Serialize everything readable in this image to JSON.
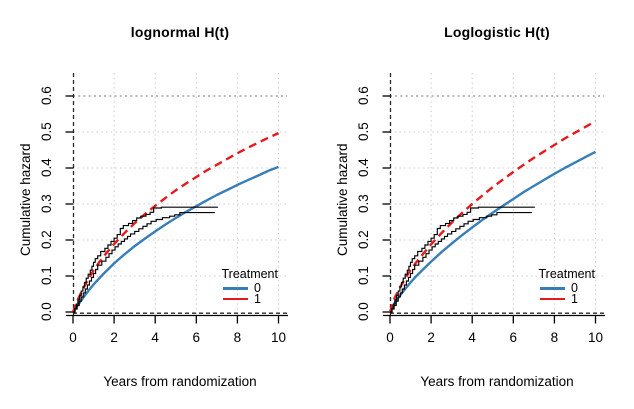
{
  "figure": {
    "colors": {
      "treatment0": "#377eb8",
      "treatment1": "#e41a1c",
      "nonparametric": "#000000",
      "grid": "#cccccc",
      "grid_dark": "#909090",
      "axis_dashed": "#2a2a2a"
    },
    "legend": {
      "title": "Treatment",
      "entries": [
        {
          "label": "0",
          "color": "#377eb8"
        },
        {
          "label": "1",
          "color": "#e41a1c"
        }
      ]
    }
  },
  "chart_data": [
    {
      "type": "line",
      "title": "lognormal H(t)",
      "xlabel": "Years from randomization",
      "ylabel": "Cumulative hazard",
      "xlim": [
        0,
        10
      ],
      "ylim": [
        0,
        0.6
      ],
      "grid": true,
      "x_ticks": [
        0,
        2,
        4,
        6,
        8,
        10
      ],
      "x_tick_labels": [
        "0",
        "2",
        "4",
        "6",
        "8",
        "10"
      ],
      "y_ticks": [
        0,
        0.1,
        0.2,
        0.3,
        0.4,
        0.5,
        0.6
      ],
      "y_tick_labels": [
        "0.0",
        "0.1",
        "0.2",
        "0.3",
        "0.4",
        "0.5",
        "0.6"
      ],
      "reference_lines": {
        "horizontal_dotted": 0.6,
        "vertical_dashed": 0,
        "horizontal_dashed": 0
      },
      "legend_position": "bottom-right",
      "x": [
        0,
        0.25,
        0.5,
        0.75,
        1,
        1.25,
        1.5,
        2,
        2.5,
        3,
        3.5,
        4,
        4.5,
        5,
        5.5,
        6,
        6.5,
        7,
        7.5,
        8,
        8.5,
        9,
        9.5,
        10
      ],
      "series": [
        {
          "name": "Treatment 0 lognormal fit",
          "style": "solid",
          "color": "#377eb8",
          "values": [
            0,
            0.02,
            0.04,
            0.059,
            0.076,
            0.092,
            0.107,
            0.135,
            0.16,
            0.183,
            0.204,
            0.224,
            0.243,
            0.261,
            0.278,
            0.294,
            0.31,
            0.325,
            0.339,
            0.353,
            0.366,
            0.379,
            0.392,
            0.403
          ]
        },
        {
          "name": "Treatment 1 lognormal fit",
          "style": "dashed",
          "color": "#e41a1c",
          "values": [
            0,
            0.036,
            0.066,
            0.092,
            0.115,
            0.136,
            0.155,
            0.189,
            0.219,
            0.247,
            0.272,
            0.295,
            0.317,
            0.338,
            0.357,
            0.375,
            0.393,
            0.409,
            0.425,
            0.441,
            0.456,
            0.47,
            0.484,
            0.497
          ]
        },
        {
          "name": "Treatment 1 nonparametric cumulative hazard",
          "style": "step",
          "color": "#000000",
          "points": [
            [
              0,
              0
            ],
            [
              0.08,
              0.01
            ],
            [
              0.16,
              0.022
            ],
            [
              0.24,
              0.034
            ],
            [
              0.32,
              0.046
            ],
            [
              0.4,
              0.058
            ],
            [
              0.48,
              0.07
            ],
            [
              0.56,
              0.082
            ],
            [
              0.64,
              0.094
            ],
            [
              0.74,
              0.105
            ],
            [
              0.84,
              0.116
            ],
            [
              0.92,
              0.127
            ],
            [
              1.0,
              0.138
            ],
            [
              1.08,
              0.148
            ],
            [
              1.2,
              0.156
            ],
            [
              1.35,
              0.168
            ],
            [
              1.55,
              0.177
            ],
            [
              1.7,
              0.186
            ],
            [
              1.85,
              0.196
            ],
            [
              2.0,
              0.205
            ],
            [
              2.15,
              0.215
            ],
            [
              2.3,
              0.232
            ],
            [
              2.45,
              0.24
            ],
            [
              2.7,
              0.246
            ],
            [
              2.9,
              0.254
            ],
            [
              3.1,
              0.261
            ],
            [
              3.3,
              0.266
            ],
            [
              3.55,
              0.271
            ],
            [
              3.75,
              0.277
            ],
            [
              3.92,
              0.289
            ],
            [
              4.3,
              0.291
            ],
            [
              7.05,
              0.291
            ]
          ]
        },
        {
          "name": "Treatment 0 nonparametric cumulative hazard",
          "style": "step",
          "color": "#000000",
          "points": [
            [
              0,
              0
            ],
            [
              0.1,
              0.008
            ],
            [
              0.2,
              0.018
            ],
            [
              0.3,
              0.03
            ],
            [
              0.4,
              0.042
            ],
            [
              0.5,
              0.053
            ],
            [
              0.6,
              0.064
            ],
            [
              0.7,
              0.075
            ],
            [
              0.8,
              0.086
            ],
            [
              0.9,
              0.096
            ],
            [
              1.0,
              0.107
            ],
            [
              1.1,
              0.118
            ],
            [
              1.2,
              0.13
            ],
            [
              1.4,
              0.141
            ],
            [
              1.6,
              0.152
            ],
            [
              1.75,
              0.162
            ],
            [
              1.9,
              0.172
            ],
            [
              2.05,
              0.181
            ],
            [
              2.2,
              0.189
            ],
            [
              2.35,
              0.196
            ],
            [
              2.5,
              0.203
            ],
            [
              2.65,
              0.21
            ],
            [
              2.8,
              0.217
            ],
            [
              3.0,
              0.224
            ],
            [
              3.2,
              0.231
            ],
            [
              3.4,
              0.238
            ],
            [
              3.6,
              0.245
            ],
            [
              3.8,
              0.252
            ],
            [
              4.05,
              0.257
            ],
            [
              4.35,
              0.262
            ],
            [
              4.7,
              0.266
            ],
            [
              4.95,
              0.27
            ],
            [
              5.2,
              0.276
            ],
            [
              6.9,
              0.276
            ]
          ]
        }
      ]
    },
    {
      "type": "line",
      "title": "Loglogistic H(t)",
      "xlabel": "Years from randomization",
      "ylabel": "Cumulative hazard",
      "xlim": [
        0,
        10
      ],
      "ylim": [
        0,
        0.6
      ],
      "grid": true,
      "x_ticks": [
        0,
        2,
        4,
        6,
        8,
        10
      ],
      "x_tick_labels": [
        "0",
        "2",
        "4",
        "6",
        "8",
        "10"
      ],
      "y_ticks": [
        0,
        0.1,
        0.2,
        0.3,
        0.4,
        0.5,
        0.6
      ],
      "y_tick_labels": [
        "0.0",
        "0.1",
        "0.2",
        "0.3",
        "0.4",
        "0.5",
        "0.6"
      ],
      "reference_lines": {
        "horizontal_dotted": 0.6,
        "vertical_dashed": 0,
        "horizontal_dashed": 0
      },
      "legend_position": "bottom-right",
      "x": [
        0,
        0.25,
        0.5,
        0.75,
        1,
        1.25,
        1.5,
        2,
        2.5,
        3,
        3.5,
        4,
        4.5,
        5,
        5.5,
        6,
        6.5,
        7,
        7.5,
        8,
        8.5,
        9,
        9.5,
        10
      ],
      "series": [
        {
          "name": "Treatment 0 loglogistic fit",
          "style": "solid",
          "color": "#377eb8",
          "values": [
            0,
            0.027,
            0.047,
            0.065,
            0.082,
            0.098,
            0.112,
            0.14,
            0.166,
            0.19,
            0.213,
            0.235,
            0.256,
            0.276,
            0.295,
            0.314,
            0.333,
            0.35,
            0.367,
            0.384,
            0.4,
            0.415,
            0.43,
            0.445
          ]
        },
        {
          "name": "Treatment 1 loglogistic fit",
          "style": "dashed",
          "color": "#e41a1c",
          "values": [
            0,
            0.042,
            0.07,
            0.094,
            0.116,
            0.136,
            0.154,
            0.188,
            0.219,
            0.248,
            0.275,
            0.3,
            0.324,
            0.347,
            0.368,
            0.389,
            0.409,
            0.428,
            0.446,
            0.464,
            0.482,
            0.498,
            0.514,
            0.53
          ]
        },
        {
          "name": "Treatment 1 nonparametric cumulative hazard",
          "style": "step",
          "color": "#000000",
          "points": [
            [
              0,
              0
            ],
            [
              0.08,
              0.01
            ],
            [
              0.16,
              0.022
            ],
            [
              0.24,
              0.034
            ],
            [
              0.32,
              0.046
            ],
            [
              0.4,
              0.058
            ],
            [
              0.48,
              0.07
            ],
            [
              0.56,
              0.082
            ],
            [
              0.64,
              0.094
            ],
            [
              0.74,
              0.105
            ],
            [
              0.84,
              0.116
            ],
            [
              0.92,
              0.127
            ],
            [
              1.0,
              0.138
            ],
            [
              1.08,
              0.148
            ],
            [
              1.2,
              0.156
            ],
            [
              1.35,
              0.168
            ],
            [
              1.55,
              0.177
            ],
            [
              1.7,
              0.186
            ],
            [
              1.85,
              0.196
            ],
            [
              2.0,
              0.205
            ],
            [
              2.15,
              0.215
            ],
            [
              2.3,
              0.232
            ],
            [
              2.45,
              0.24
            ],
            [
              2.7,
              0.246
            ],
            [
              2.9,
              0.254
            ],
            [
              3.1,
              0.261
            ],
            [
              3.3,
              0.266
            ],
            [
              3.55,
              0.271
            ],
            [
              3.75,
              0.277
            ],
            [
              3.92,
              0.289
            ],
            [
              4.3,
              0.291
            ],
            [
              7.05,
              0.291
            ]
          ]
        },
        {
          "name": "Treatment 0 nonparametric cumulative hazard",
          "style": "step",
          "color": "#000000",
          "points": [
            [
              0,
              0
            ],
            [
              0.1,
              0.008
            ],
            [
              0.2,
              0.018
            ],
            [
              0.3,
              0.03
            ],
            [
              0.4,
              0.042
            ],
            [
              0.5,
              0.053
            ],
            [
              0.6,
              0.064
            ],
            [
              0.7,
              0.075
            ],
            [
              0.8,
              0.086
            ],
            [
              0.9,
              0.096
            ],
            [
              1.0,
              0.107
            ],
            [
              1.1,
              0.118
            ],
            [
              1.2,
              0.13
            ],
            [
              1.4,
              0.141
            ],
            [
              1.6,
              0.152
            ],
            [
              1.75,
              0.162
            ],
            [
              1.9,
              0.172
            ],
            [
              2.05,
              0.181
            ],
            [
              2.2,
              0.189
            ],
            [
              2.35,
              0.196
            ],
            [
              2.5,
              0.203
            ],
            [
              2.65,
              0.21
            ],
            [
              2.8,
              0.217
            ],
            [
              3.0,
              0.224
            ],
            [
              3.2,
              0.231
            ],
            [
              3.4,
              0.238
            ],
            [
              3.6,
              0.245
            ],
            [
              3.8,
              0.252
            ],
            [
              4.05,
              0.257
            ],
            [
              4.35,
              0.262
            ],
            [
              4.7,
              0.266
            ],
            [
              4.95,
              0.27
            ],
            [
              5.2,
              0.276
            ],
            [
              6.9,
              0.276
            ]
          ]
        }
      ]
    }
  ]
}
